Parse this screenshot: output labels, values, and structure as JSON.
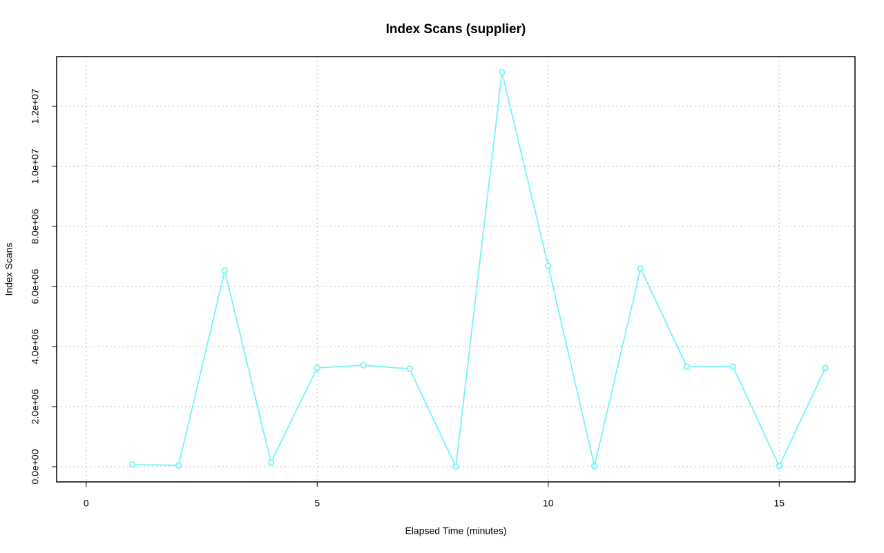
{
  "chart_data": {
    "type": "line",
    "title": "Index Scans (supplier)",
    "xlabel": "Elapsed Time (minutes)",
    "ylabel": "Index Scans",
    "x": [
      1,
      2,
      3,
      4,
      5,
      6,
      7,
      8,
      9,
      10,
      11,
      12,
      13,
      14,
      15,
      16
    ],
    "series": [
      {
        "name": "Index Scans",
        "color": "#70f5f5",
        "values": [
          69000,
          46000,
          6530000,
          140000,
          3290000,
          3380000,
          3260000,
          0,
          13130000,
          6690000,
          20000,
          6600000,
          3330000,
          3330000,
          20000,
          3290000
        ]
      }
    ],
    "xlim": [
      -0.64,
      16.64
    ],
    "xticks": [
      0,
      5,
      10,
      15
    ],
    "ylim": [
      -506000,
      13655000
    ],
    "yticks": [
      {
        "value": 0,
        "label": "0.0e+00"
      },
      {
        "value": 2000000,
        "label": "2.0e+06"
      },
      {
        "value": 4000000,
        "label": "4.0e+06"
      },
      {
        "value": 6000000,
        "label": "6.0e+06"
      },
      {
        "value": 8000000,
        "label": "8.0e+06"
      },
      {
        "value": 10000000,
        "label": "1.0e+07"
      },
      {
        "value": 12000000,
        "label": "1.2e+07"
      }
    ],
    "grid": true
  }
}
